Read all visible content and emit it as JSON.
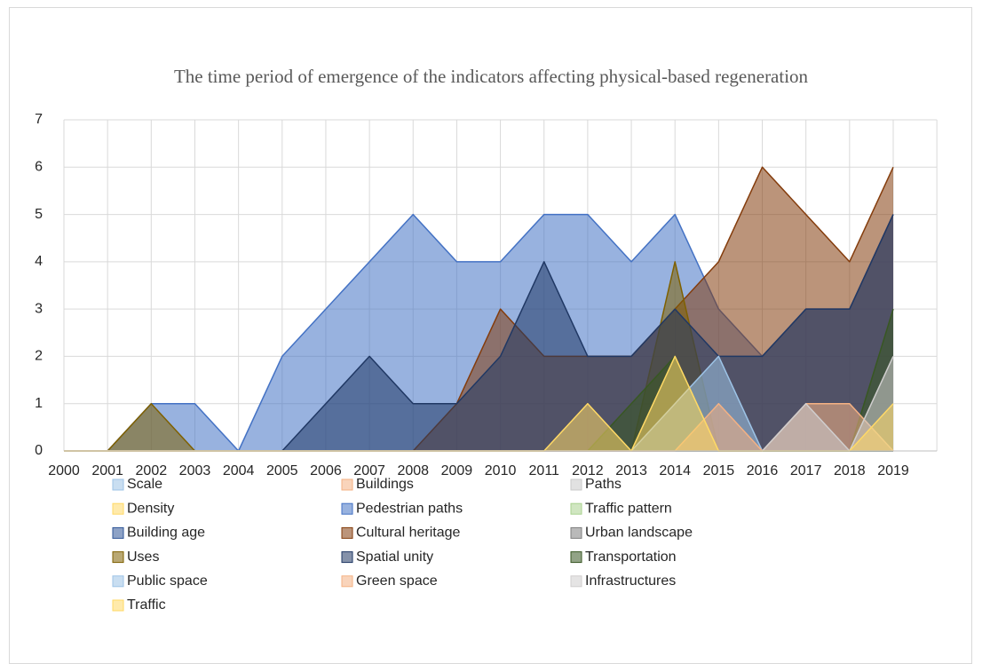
{
  "chart_data": {
    "type": "area",
    "title": "The time period of emergence of the indicators affecting physical-based regeneration",
    "categories": [
      "2000",
      "2001",
      "2002",
      "2003",
      "2004",
      "2005",
      "2006",
      "2007",
      "2008",
      "2009",
      "2010",
      "2011",
      "2012",
      "2013",
      "2014",
      "2015",
      "2016",
      "2017",
      "2018",
      "2019"
    ],
    "ylim": [
      0,
      7
    ],
    "yticks": [
      0,
      1,
      2,
      3,
      4,
      5,
      6,
      7
    ],
    "grid": true,
    "series": [
      {
        "name": "Scale",
        "color": "#9dc3e6",
        "values": [
          0,
          0,
          0,
          0,
          0,
          0,
          0,
          0,
          0,
          0,
          0,
          0,
          0,
          0,
          0,
          0,
          0,
          0,
          0,
          0
        ]
      },
      {
        "name": "Buildings",
        "color": "#f4b183",
        "values": [
          0,
          0,
          0,
          0,
          0,
          0,
          0,
          0,
          0,
          0,
          0,
          0,
          0,
          0,
          0,
          0,
          0,
          0,
          0,
          0
        ]
      },
      {
        "name": "Paths",
        "color": "#c9c9c9",
        "values": [
          0,
          0,
          0,
          0,
          0,
          0,
          0,
          0,
          0,
          0,
          0,
          0,
          0,
          0,
          0,
          0,
          0,
          0,
          0,
          0
        ]
      },
      {
        "name": "Density",
        "color": "#ffd966",
        "values": [
          0,
          0,
          0,
          0,
          0,
          0,
          0,
          0,
          0,
          0,
          0,
          0,
          0,
          0,
          0,
          0,
          0,
          0,
          0,
          0
        ]
      },
      {
        "name": "Pedestrian paths",
        "color": "#4472c4",
        "values": [
          0,
          0,
          1,
          1,
          0,
          2,
          3,
          4,
          5,
          4,
          4,
          5,
          5,
          4,
          5,
          3,
          2,
          3,
          3,
          5
        ]
      },
      {
        "name": "Traffic pattern",
        "color": "#a9d18e",
        "values": [
          0,
          0,
          0,
          0,
          0,
          0,
          0,
          0,
          0,
          0,
          0,
          0,
          0,
          0,
          0,
          0,
          0,
          0,
          0,
          0
        ]
      },
      {
        "name": "Building age",
        "color": "#2f5597",
        "values": [
          0,
          0,
          0,
          0,
          0,
          0,
          0,
          0,
          0,
          0,
          0,
          0,
          0,
          0,
          0,
          0,
          0,
          0,
          0,
          0
        ]
      },
      {
        "name": "Cultural heritage",
        "color": "#843c0c",
        "values": [
          0,
          0,
          0,
          0,
          0,
          0,
          0,
          0,
          0,
          1,
          3,
          2,
          2,
          2,
          3,
          4,
          6,
          5,
          4,
          6
        ]
      },
      {
        "name": "Urban landscape",
        "color": "#7f7f7f",
        "values": [
          0,
          0,
          0,
          0,
          0,
          0,
          0,
          0,
          0,
          0,
          0,
          0,
          0,
          0,
          0,
          0,
          0,
          0,
          0,
          0
        ]
      },
      {
        "name": "Uses",
        "color": "#7f6000",
        "values": [
          0,
          0,
          1,
          0,
          0,
          0,
          0,
          0,
          0,
          0,
          0,
          0,
          0,
          0,
          4,
          0,
          0,
          0,
          0,
          0
        ]
      },
      {
        "name": "Spatial unity",
        "color": "#203864",
        "values": [
          0,
          0,
          0,
          0,
          0,
          0,
          1,
          2,
          1,
          1,
          2,
          4,
          2,
          2,
          3,
          2,
          2,
          3,
          3,
          5
        ]
      },
      {
        "name": "Transportation",
        "color": "#385723",
        "values": [
          0,
          0,
          0,
          0,
          0,
          0,
          0,
          0,
          0,
          0,
          0,
          0,
          0,
          1,
          2,
          0,
          0,
          0,
          0,
          3
        ]
      },
      {
        "name": "Public space",
        "color": "#9dc3e6",
        "values": [
          0,
          0,
          0,
          0,
          0,
          0,
          0,
          0,
          0,
          0,
          0,
          0,
          0,
          0,
          1,
          2,
          0,
          0,
          0,
          0
        ]
      },
      {
        "name": "Green space",
        "color": "#f4b183",
        "values": [
          0,
          0,
          0,
          0,
          0,
          0,
          0,
          0,
          0,
          0,
          0,
          0,
          0,
          0,
          0,
          1,
          0,
          1,
          1,
          0
        ]
      },
      {
        "name": "Infrastructures",
        "color": "#d0cece",
        "values": [
          0,
          0,
          0,
          0,
          0,
          0,
          0,
          0,
          0,
          0,
          0,
          0,
          0,
          0,
          0,
          0,
          0,
          1,
          0,
          2
        ]
      },
      {
        "name": "Traffic",
        "color": "#ffd966",
        "values": [
          0,
          0,
          0,
          0,
          0,
          0,
          0,
          0,
          0,
          0,
          0,
          0,
          1,
          0,
          2,
          0,
          0,
          0,
          0,
          1
        ]
      }
    ]
  }
}
